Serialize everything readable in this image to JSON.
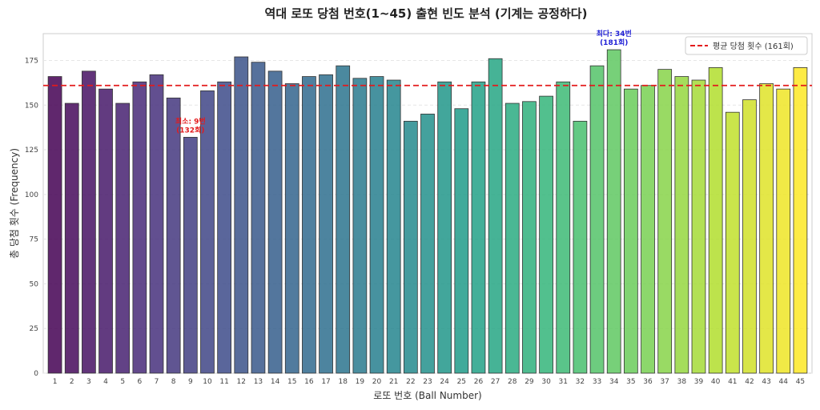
{
  "chart_data": {
    "type": "bar",
    "title": "역대 로또 당첨 번호(1~45) 출현 빈도 분석 (기계는 공정하다)",
    "xlabel": "로또 번호 (Ball Number)",
    "ylabel": "총 당첨 횟수 (Frequency)",
    "ylim": [
      0,
      190
    ],
    "yticks": [
      0,
      25,
      50,
      75,
      100,
      125,
      150,
      175
    ],
    "grid": true,
    "legend_position": "top-right",
    "categories": [
      "1",
      "2",
      "3",
      "4",
      "5",
      "6",
      "7",
      "8",
      "9",
      "10",
      "11",
      "12",
      "13",
      "14",
      "15",
      "16",
      "17",
      "18",
      "19",
      "20",
      "21",
      "22",
      "23",
      "24",
      "25",
      "26",
      "27",
      "28",
      "29",
      "30",
      "31",
      "32",
      "33",
      "34",
      "35",
      "36",
      "37",
      "38",
      "39",
      "40",
      "41",
      "42",
      "43",
      "44",
      "45"
    ],
    "values": [
      166,
      151,
      169,
      159,
      151,
      163,
      167,
      154,
      132,
      158,
      163,
      177,
      174,
      169,
      162,
      166,
      167,
      172,
      165,
      166,
      164,
      141,
      145,
      163,
      148,
      163,
      176,
      151,
      152,
      155,
      163,
      141,
      172,
      181,
      159,
      161,
      170,
      166,
      164,
      171,
      146,
      153,
      162,
      159,
      171
    ],
    "mean": {
      "value": 161,
      "label": "평균 당첨 횟수 (161회)",
      "color": "#e31a1c"
    },
    "annotations": [
      {
        "category": "9",
        "value": 132,
        "line1": "최소: 9번",
        "line2": "(132회)",
        "color": "#e31a1c"
      },
      {
        "category": "34",
        "value": 181,
        "line1": "최다: 34번",
        "line2": "(181회)",
        "color": "#1f1fd6"
      }
    ],
    "colormap": "viridis"
  }
}
